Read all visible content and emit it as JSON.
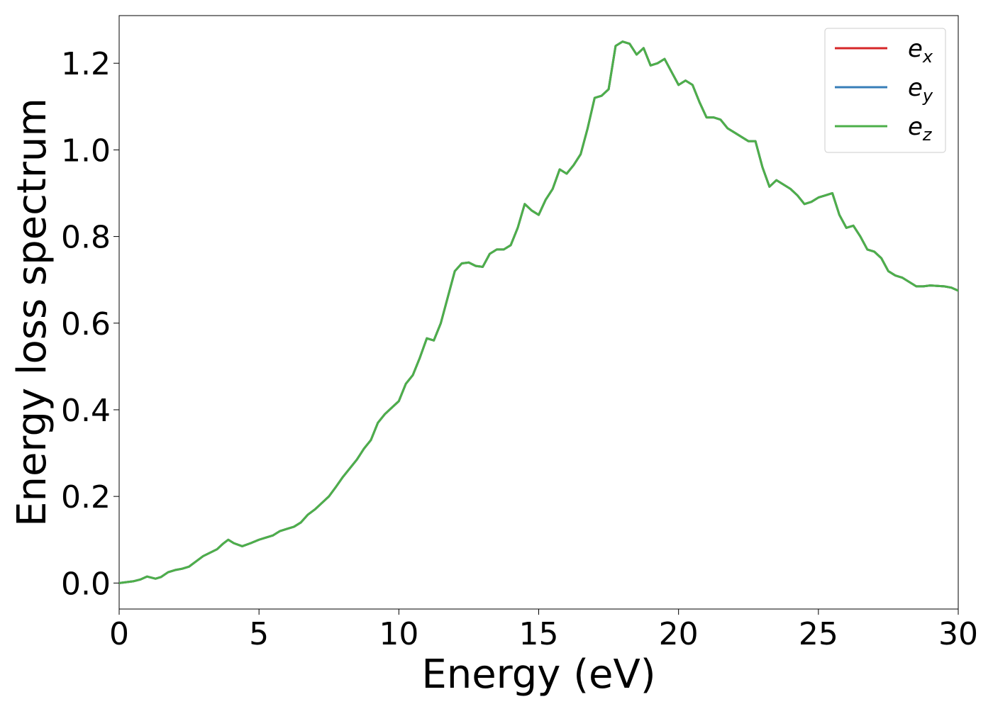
{
  "chart_data": {
    "type": "line",
    "xlabel": "Energy (eV)",
    "ylabel": "Energy loss spectrum",
    "xlim": [
      0,
      30
    ],
    "ylim": [
      -0.06,
      1.31
    ],
    "xticks": [
      0,
      5,
      10,
      15,
      20,
      25,
      30
    ],
    "xtick_labels": [
      "0",
      "5",
      "10",
      "15",
      "20",
      "25",
      "30"
    ],
    "yticks": [
      0.0,
      0.2,
      0.4,
      0.6,
      0.8,
      1.0,
      1.2
    ],
    "ytick_labels": [
      "0.0",
      "0.2",
      "0.4",
      "0.6",
      "0.8",
      "1.0",
      "1.2"
    ],
    "grid": false,
    "legend_position": "top-right",
    "x": [
      0,
      0.25,
      0.5,
      0.75,
      1.0,
      1.3,
      1.5,
      1.75,
      2.0,
      2.25,
      2.5,
      2.75,
      3.0,
      3.25,
      3.5,
      3.7,
      3.9,
      4.1,
      4.4,
      4.7,
      5.0,
      5.25,
      5.5,
      5.75,
      6.0,
      6.25,
      6.5,
      6.75,
      7.0,
      7.25,
      7.5,
      7.75,
      8.0,
      8.25,
      8.5,
      8.75,
      9.0,
      9.25,
      9.5,
      9.75,
      10.0,
      10.25,
      10.5,
      10.75,
      11.0,
      11.25,
      11.5,
      11.75,
      12.0,
      12.25,
      12.5,
      12.75,
      13.0,
      13.25,
      13.5,
      13.75,
      14.0,
      14.25,
      14.5,
      14.75,
      15.0,
      15.25,
      15.5,
      15.75,
      16.0,
      16.25,
      16.5,
      16.75,
      17.0,
      17.25,
      17.5,
      17.75,
      18.0,
      18.25,
      18.5,
      18.75,
      19.0,
      19.25,
      19.5,
      19.75,
      20.0,
      20.25,
      20.5,
      20.75,
      21.0,
      21.25,
      21.5,
      21.75,
      22.0,
      22.25,
      22.5,
      22.75,
      23.0,
      23.25,
      23.5,
      23.75,
      24.0,
      24.25,
      24.5,
      24.75,
      25.0,
      25.25,
      25.5,
      25.75,
      26.0,
      26.25,
      26.5,
      26.75,
      27.0,
      27.25,
      27.5,
      27.75,
      28.0,
      28.25,
      28.5,
      28.75,
      29.0,
      29.25,
      29.5,
      29.75,
      30.0
    ],
    "series": [
      {
        "name": "e",
        "name_sub": "x",
        "color": "#d62728",
        "values": [
          0.0,
          0.002,
          0.004,
          0.008,
          0.015,
          0.01,
          0.014,
          0.025,
          0.03,
          0.033,
          0.038,
          0.05,
          0.062,
          0.07,
          0.078,
          0.09,
          0.1,
          0.092,
          0.085,
          0.092,
          0.1,
          0.105,
          0.11,
          0.12,
          0.125,
          0.13,
          0.14,
          0.158,
          0.17,
          0.185,
          0.2,
          0.222,
          0.245,
          0.265,
          0.285,
          0.31,
          0.33,
          0.37,
          0.39,
          0.405,
          0.42,
          0.46,
          0.48,
          0.52,
          0.565,
          0.56,
          0.6,
          0.66,
          0.72,
          0.738,
          0.74,
          0.732,
          0.73,
          0.76,
          0.77,
          0.77,
          0.78,
          0.82,
          0.875,
          0.86,
          0.85,
          0.885,
          0.91,
          0.955,
          0.945,
          0.965,
          0.99,
          1.05,
          1.12,
          1.125,
          1.14,
          1.24,
          1.25,
          1.245,
          1.22,
          1.235,
          1.195,
          1.2,
          1.21,
          1.18,
          1.15,
          1.16,
          1.15,
          1.11,
          1.075,
          1.075,
          1.07,
          1.05,
          1.04,
          1.03,
          1.02,
          1.02,
          0.96,
          0.915,
          0.93,
          0.92,
          0.91,
          0.895,
          0.875,
          0.88,
          0.89,
          0.895,
          0.9,
          0.85,
          0.82,
          0.825,
          0.8,
          0.77,
          0.765,
          0.75,
          0.72,
          0.71,
          0.705,
          0.695,
          0.685,
          0.685,
          0.687,
          0.686,
          0.685,
          0.682,
          0.675
        ]
      },
      {
        "name": "e",
        "name_sub": "y",
        "color": "#377eb8",
        "values": [
          0.0,
          0.002,
          0.004,
          0.008,
          0.015,
          0.01,
          0.014,
          0.025,
          0.03,
          0.033,
          0.038,
          0.05,
          0.062,
          0.07,
          0.078,
          0.09,
          0.1,
          0.092,
          0.085,
          0.092,
          0.1,
          0.105,
          0.11,
          0.12,
          0.125,
          0.13,
          0.14,
          0.158,
          0.17,
          0.185,
          0.2,
          0.222,
          0.245,
          0.265,
          0.285,
          0.31,
          0.33,
          0.37,
          0.39,
          0.405,
          0.42,
          0.46,
          0.48,
          0.52,
          0.565,
          0.56,
          0.6,
          0.66,
          0.72,
          0.738,
          0.74,
          0.732,
          0.73,
          0.76,
          0.77,
          0.77,
          0.78,
          0.82,
          0.875,
          0.86,
          0.85,
          0.885,
          0.91,
          0.955,
          0.945,
          0.965,
          0.99,
          1.05,
          1.12,
          1.125,
          1.14,
          1.24,
          1.25,
          1.245,
          1.22,
          1.235,
          1.195,
          1.2,
          1.21,
          1.18,
          1.15,
          1.16,
          1.15,
          1.11,
          1.075,
          1.075,
          1.07,
          1.05,
          1.04,
          1.03,
          1.02,
          1.02,
          0.96,
          0.915,
          0.93,
          0.92,
          0.91,
          0.895,
          0.875,
          0.88,
          0.89,
          0.895,
          0.9,
          0.85,
          0.82,
          0.825,
          0.8,
          0.77,
          0.765,
          0.75,
          0.72,
          0.71,
          0.705,
          0.695,
          0.685,
          0.685,
          0.687,
          0.686,
          0.685,
          0.682,
          0.675
        ]
      },
      {
        "name": "e",
        "name_sub": "z",
        "color": "#4daf4a",
        "values": [
          0.0,
          0.002,
          0.004,
          0.008,
          0.015,
          0.01,
          0.014,
          0.025,
          0.03,
          0.033,
          0.038,
          0.05,
          0.062,
          0.07,
          0.078,
          0.09,
          0.1,
          0.092,
          0.085,
          0.092,
          0.1,
          0.105,
          0.11,
          0.12,
          0.125,
          0.13,
          0.14,
          0.158,
          0.17,
          0.185,
          0.2,
          0.222,
          0.245,
          0.265,
          0.285,
          0.31,
          0.33,
          0.37,
          0.39,
          0.405,
          0.42,
          0.46,
          0.48,
          0.52,
          0.565,
          0.56,
          0.6,
          0.66,
          0.72,
          0.738,
          0.74,
          0.732,
          0.73,
          0.76,
          0.77,
          0.77,
          0.78,
          0.82,
          0.875,
          0.86,
          0.85,
          0.885,
          0.91,
          0.955,
          0.945,
          0.965,
          0.99,
          1.05,
          1.12,
          1.125,
          1.14,
          1.24,
          1.25,
          1.245,
          1.22,
          1.235,
          1.195,
          1.2,
          1.21,
          1.18,
          1.15,
          1.16,
          1.15,
          1.11,
          1.075,
          1.075,
          1.07,
          1.05,
          1.04,
          1.03,
          1.02,
          1.02,
          0.96,
          0.915,
          0.93,
          0.92,
          0.91,
          0.895,
          0.875,
          0.88,
          0.89,
          0.895,
          0.9,
          0.85,
          0.82,
          0.825,
          0.8,
          0.77,
          0.765,
          0.75,
          0.72,
          0.71,
          0.705,
          0.695,
          0.685,
          0.685,
          0.687,
          0.686,
          0.685,
          0.682,
          0.675
        ]
      }
    ]
  }
}
